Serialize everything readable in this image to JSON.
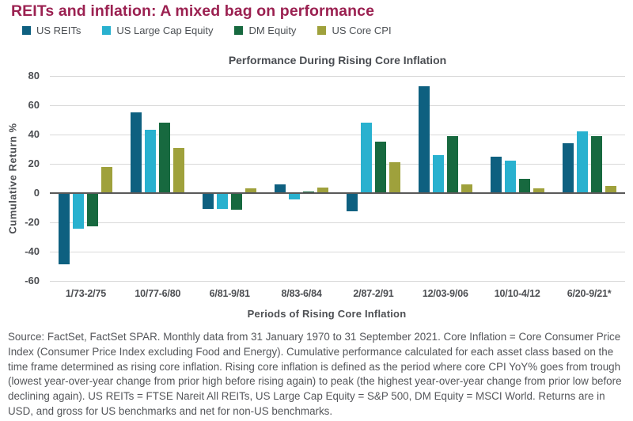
{
  "page": {
    "title": "REITs and inflation: A mixed bag on performance"
  },
  "colors": {
    "title": "#9b2151",
    "chart_text": "#4d4f53",
    "grid": "#d9d9d9",
    "zero_line": "#595959",
    "footnote_text": "#54565a"
  },
  "chart_data": {
    "type": "bar",
    "title": "Performance During Rising Core Inflation",
    "xlabel": "Periods of Rising Core Inflation",
    "ylabel": "Cumulative Return %",
    "ylim": [
      -60,
      80
    ],
    "yticks": [
      80,
      60,
      40,
      20,
      0,
      -20,
      -40,
      -60
    ],
    "grid": true,
    "legend_position": "top-left",
    "categories": [
      "1/73-2/75",
      "10/77-6/80",
      "6/81-9/81",
      "8/83-6/84",
      "2/87-2/91",
      "12/03-9/06",
      "10/10-4/12",
      "6/20-9/21*"
    ],
    "series": [
      {
        "name": "US REITs",
        "color": "#0e6080",
        "values": [
          -48,
          55,
          -10,
          6,
          -12,
          73,
          25,
          34
        ]
      },
      {
        "name": "US Large Cap Equity",
        "color": "#29b1cf",
        "values": [
          -24,
          43,
          -10,
          -4,
          48,
          26,
          22,
          42
        ]
      },
      {
        "name": "DM Equity",
        "color": "#17693f",
        "values": [
          -22,
          48,
          -11,
          1,
          35,
          39,
          10,
          39
        ]
      },
      {
        "name": "US Core CPI",
        "color": "#9fa13c",
        "values": [
          18,
          31,
          3,
          4,
          21,
          6,
          3,
          5
        ]
      }
    ]
  },
  "footnote": {
    "text": "Source: FactSet, FactSet SPAR. Monthly data from 31 January 1970 to 31 September 2021. Core Inflation = Core Consumer Price Index (Consumer Price Index excluding Food and Energy). Cumulative performance calculated for each asset class based on the time frame determined as rising core inflation. Rising core inflation is defined as the period where core CPI YoY% goes from trough (lowest year-over-year change from prior high before rising again) to peak (the highest year-over-year change from prior low before declining again). US REITs = FTSE Nareit All REITs, US Large Cap Equity = S&P 500, DM Equity = MSCI World. Returns are in USD, and gross for US benchmarks and net for non-US benchmarks."
  }
}
